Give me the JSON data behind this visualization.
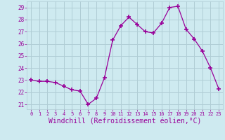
{
  "x": [
    0,
    1,
    2,
    3,
    4,
    5,
    6,
    7,
    8,
    9,
    10,
    11,
    12,
    13,
    14,
    15,
    16,
    17,
    18,
    19,
    20,
    21,
    22,
    23
  ],
  "y": [
    23.0,
    22.9,
    22.9,
    22.8,
    22.5,
    22.2,
    22.1,
    21.0,
    21.5,
    23.2,
    26.3,
    27.5,
    28.2,
    27.6,
    27.0,
    26.9,
    27.7,
    29.0,
    29.1,
    27.2,
    26.4,
    25.4,
    24.0,
    22.3
  ],
  "line_color": "#990099",
  "marker": "+",
  "marker_size": 4,
  "marker_lw": 1.2,
  "xlabel": "Windchill (Refroidissement éolien,°C)",
  "xlabel_fontsize": 7,
  "xtick_labels": [
    "0",
    "1",
    "2",
    "3",
    "4",
    "5",
    "6",
    "7",
    "8",
    "9",
    "10",
    "11",
    "12",
    "13",
    "14",
    "15",
    "16",
    "17",
    "18",
    "19",
    "20",
    "21",
    "22",
    "23"
  ],
  "ytick_min": 21,
  "ytick_max": 29,
  "ytick_step": 1,
  "ylim": [
    20.6,
    29.5
  ],
  "xlim": [
    -0.5,
    23.5
  ],
  "background_color": "#ceeaf0",
  "grid_color": "#b0cdd5",
  "tick_color": "#990099",
  "label_color": "#990099"
}
